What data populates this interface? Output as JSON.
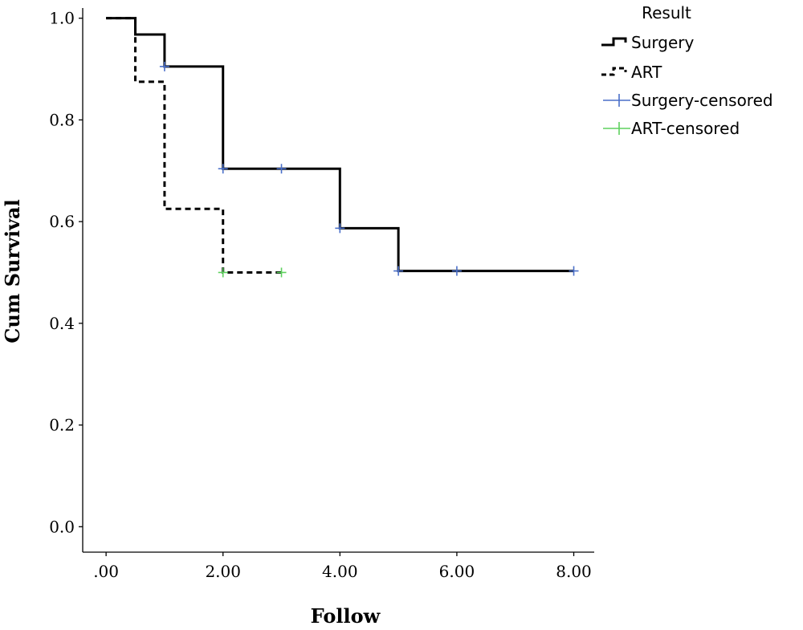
{
  "chart_data": {
    "type": "line",
    "xlabel": "Follow",
    "ylabel": "Cum Survival",
    "xlim": [
      -0.4,
      8.35
    ],
    "ylim": [
      -0.05,
      1.02
    ],
    "x_ticks": [
      0,
      2,
      4,
      6,
      8
    ],
    "x_tick_labels": [
      ".00",
      "2.00",
      "4.00",
      "6.00",
      "8.00"
    ],
    "y_ticks": [
      0,
      0.2,
      0.4,
      0.6,
      0.8,
      1.0
    ],
    "y_tick_labels": [
      "0.0",
      "0.2",
      "0.4",
      "0.6",
      "0.8",
      "1.0"
    ],
    "grid": false,
    "legend": {
      "title": "Result",
      "position": "top-right",
      "entries": [
        "Surgery",
        "ART",
        "Surgery-censored",
        "ART-censored"
      ]
    },
    "series": [
      {
        "name": "Surgery",
        "style": "solid",
        "color": "#000000",
        "steps": [
          [
            0,
            1.0
          ],
          [
            0.5,
            0.968
          ],
          [
            1,
            0.905
          ],
          [
            2,
            0.704
          ],
          [
            4,
            0.587
          ],
          [
            5,
            0.503
          ],
          [
            8,
            0.503
          ]
        ]
      },
      {
        "name": "ART",
        "style": "dashed",
        "color": "#000000",
        "steps": [
          [
            0,
            1.0
          ],
          [
            0.5,
            0.875
          ],
          [
            1,
            0.625
          ],
          [
            2,
            0.5
          ],
          [
            3,
            0.5
          ]
        ]
      }
    ],
    "censored": [
      {
        "name": "Surgery-censored",
        "color": "#4a6fc9",
        "points": [
          [
            1,
            0.905
          ],
          [
            2,
            0.704
          ],
          [
            3,
            0.704
          ],
          [
            4,
            0.587
          ],
          [
            5,
            0.503
          ],
          [
            6,
            0.503
          ],
          [
            8,
            0.503
          ]
        ]
      },
      {
        "name": "ART-censored",
        "color": "#5ed15e",
        "points": [
          [
            2,
            0.5
          ],
          [
            3,
            0.5
          ]
        ]
      }
    ]
  }
}
